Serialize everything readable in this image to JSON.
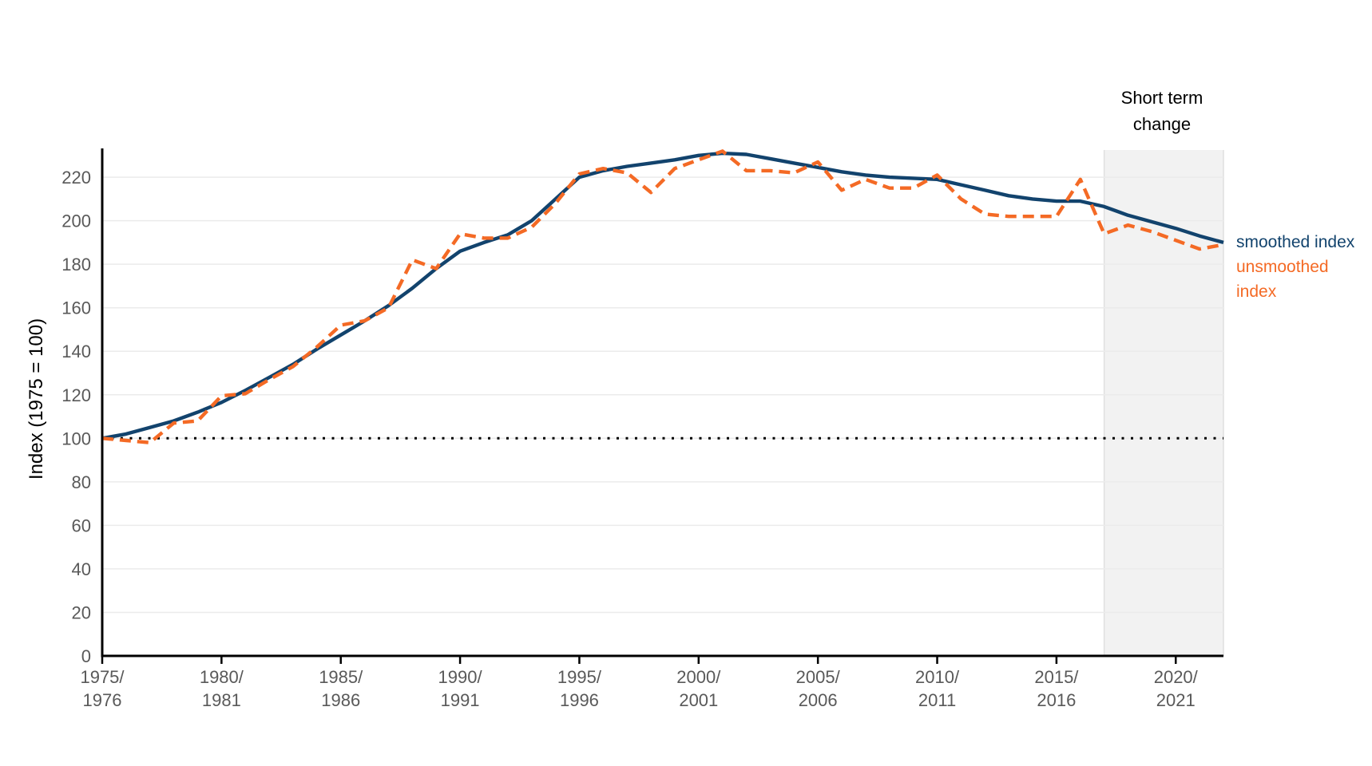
{
  "page": {
    "background": "#ffffff"
  },
  "yaxis_title": "Index (1975 = 100)",
  "annotation": {
    "label": "Short term change",
    "band_color": "#f2f2f2",
    "band_edge_color": "#e0e0e0",
    "start_year": 2017
  },
  "legend": {
    "items": [
      {
        "label": "smoothed index",
        "color": "#12436D"
      },
      {
        "label": "unsmoothed index",
        "color": "#F46A25"
      }
    ]
  },
  "chart_data": {
    "type": "line",
    "title": "",
    "xlabel": "",
    "ylabel": "Index (1975 = 100)",
    "x": [
      1975,
      1976,
      1977,
      1978,
      1979,
      1980,
      1981,
      1982,
      1983,
      1984,
      1985,
      1986,
      1987,
      1988,
      1989,
      1990,
      1991,
      1992,
      1993,
      1994,
      1995,
      1996,
      1997,
      1998,
      1999,
      2000,
      2001,
      2002,
      2003,
      2004,
      2005,
      2006,
      2007,
      2008,
      2009,
      2010,
      2011,
      2012,
      2013,
      2014,
      2015,
      2016,
      2017,
      2018,
      2019,
      2020,
      2021,
      2022
    ],
    "x_label_style": "splitYearPair",
    "xtick_years": [
      1975,
      1980,
      1985,
      1990,
      1995,
      2000,
      2005,
      2010,
      2015,
      2020
    ],
    "yticks": [
      0,
      20,
      40,
      60,
      80,
      100,
      120,
      140,
      160,
      180,
      200,
      220
    ],
    "ylim": [
      0,
      232.5
    ],
    "grid": "horizontal",
    "reference_line": 100,
    "legend_position": "right",
    "series": [
      {
        "name": "smoothed index",
        "color": "#12436D",
        "style": "solid",
        "values": [
          100,
          102,
          105,
          108,
          112,
          116.5,
          122,
          128,
          134,
          141,
          147.5,
          154,
          161,
          169,
          178,
          186,
          190,
          193.5,
          200,
          210,
          220,
          223,
          225,
          226.5,
          228,
          230,
          231,
          230.5,
          228.5,
          226.5,
          224.5,
          222.5,
          221,
          220,
          219.5,
          219,
          216.5,
          214,
          211.5,
          210,
          209,
          209,
          206.5,
          202.5,
          199.5,
          196.5,
          193,
          190
        ]
      },
      {
        "name": "unsmoothed index",
        "color": "#F46A25",
        "style": "dashed",
        "values": [
          100,
          99,
          98,
          107,
          108,
          119.5,
          120.5,
          127,
          133,
          142,
          152,
          154,
          160,
          182,
          178,
          194,
          192,
          192,
          197,
          208,
          221.5,
          224,
          222,
          213,
          224,
          228,
          232,
          223,
          223,
          222,
          227,
          214,
          219,
          215,
          215,
          221,
          210,
          203,
          202,
          202,
          202,
          219,
          194,
          198,
          195,
          191,
          187,
          189
        ]
      }
    ],
    "shaded_region": {
      "label": "Short term change",
      "from_year": 2017,
      "to_year": 2022
    }
  }
}
